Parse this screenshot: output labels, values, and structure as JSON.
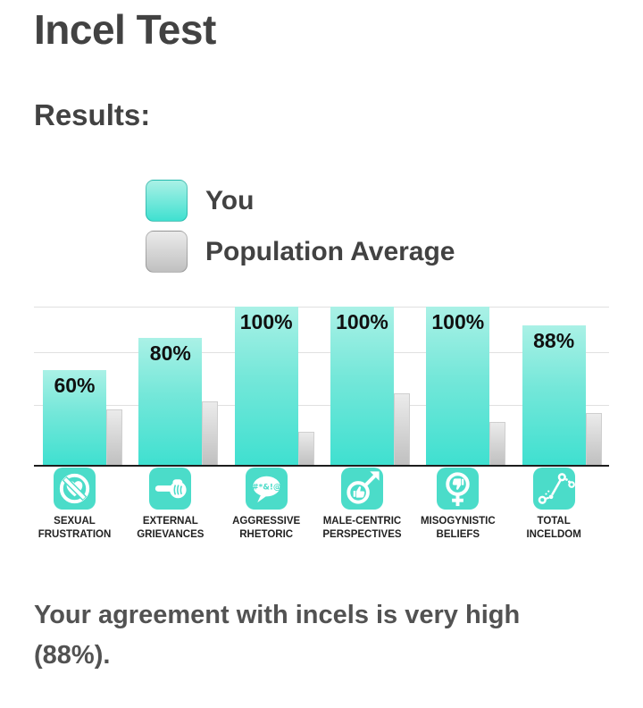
{
  "page": {
    "title": "Incel Test",
    "results_heading": "Results:",
    "summary": "Your agreement with incels is very high (88%)."
  },
  "legend": {
    "you_label": "You",
    "population_label": "Population Average"
  },
  "colors": {
    "you_bar_top": "#aaf1e6",
    "you_bar_bottom": "#3fe0d0",
    "pop_bar_top": "#ebebeb",
    "pop_bar_bottom": "#c0c0c0",
    "icon_background": "#4bdcc9",
    "gridline": "#e0e0e0",
    "axis_baseline": "#1d1d1d",
    "heading_text": "#424242",
    "summary_text": "#525252",
    "bar_value_text": "#101010",
    "category_text": "#222222"
  },
  "chart_data": {
    "type": "bar",
    "title": "",
    "xlabel": "",
    "ylabel": "",
    "ylim": [
      0,
      100
    ],
    "grid": "horizontal",
    "grid_levels": [
      38,
      71,
      100
    ],
    "legend_position": "above chart, left aligned",
    "categories": [
      "SEXUAL FRUSTRATION",
      "EXTERNAL GRIEVANCES",
      "AGGRESSIVE RHETORIC",
      "MALE-CENTRIC PERSPECTIVES",
      "MISOGYNISTIC BELIEFS",
      "TOTAL INCELDOM"
    ],
    "category_lines": [
      [
        "SEXUAL",
        "FRUSTRATION"
      ],
      [
        "EXTERNAL",
        "GRIEVANCES"
      ],
      [
        "AGGRESSIVE",
        "RHETORIC"
      ],
      [
        "MALE-CENTRIC",
        "PERSPECTIVES"
      ],
      [
        "MISOGYNISTIC",
        "BELIEFS"
      ],
      [
        "TOTAL",
        "INCELDOM"
      ]
    ],
    "icons": [
      "heart-slash-icon",
      "pointing-hand-icon",
      "profanity-bubble-icon",
      "male-thumbs-up-icon",
      "female-thumbs-down-icon",
      "connected-dots-icon"
    ],
    "bubble_text": "#*&!@",
    "series": [
      {
        "name": "You",
        "values": [
          60,
          80,
          100,
          100,
          100,
          88
        ],
        "value_labels": [
          "60%",
          "80%",
          "100%",
          "100%",
          "100%",
          "88%"
        ]
      },
      {
        "name": "Population Average",
        "values": [
          35,
          40,
          21,
          45,
          27,
          33
        ],
        "value_labels_shown": false,
        "values_estimated": true
      }
    ]
  }
}
